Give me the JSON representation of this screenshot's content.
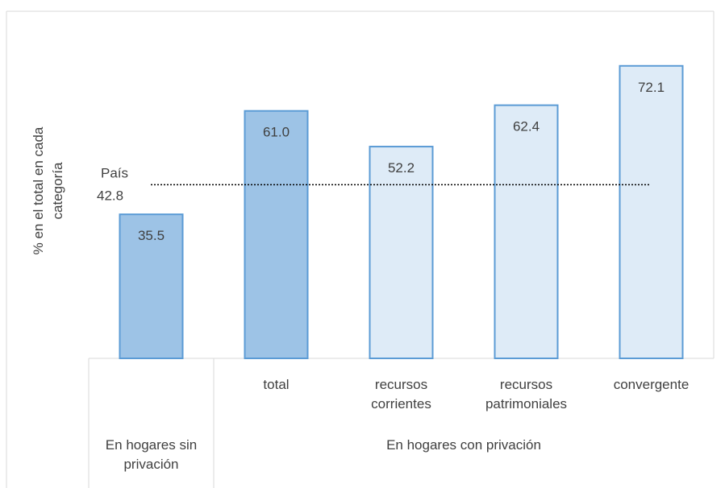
{
  "chart_data": {
    "type": "bar",
    "y_axis_label": "% en el total en cada categoría",
    "categories": [
      null,
      "total",
      "recursos corrientes",
      "recursos patrimoniales",
      "convergente"
    ],
    "groups": [
      {
        "label": "En hogares sin privación",
        "size": 1
      },
      {
        "label": "En hogares con privación",
        "size": 4
      }
    ],
    "values": [
      35.5,
      61.0,
      52.2,
      62.4,
      72.1
    ],
    "value_labels": [
      "35.5",
      "61.0",
      "52.2",
      "62.4",
      "72.1"
    ],
    "colors": [
      "#9dc3e6",
      "#9dc3e6",
      "#deebf7",
      "#deebf7",
      "#deebf7"
    ],
    "edge_color": "#5b9bd5",
    "ylim": [
      0,
      80
    ],
    "reference": {
      "label": "País",
      "value": 42.8
    }
  }
}
